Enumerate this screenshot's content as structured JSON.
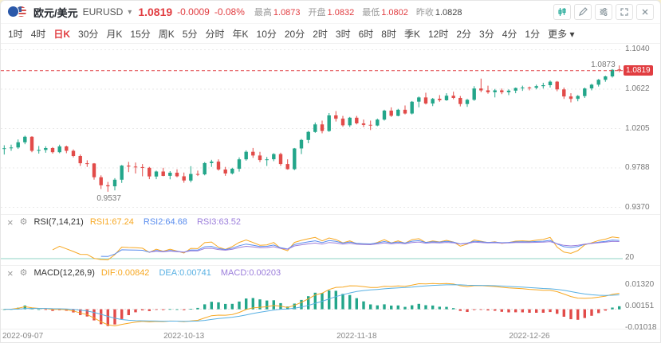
{
  "header": {
    "pair_name": "欧元/美元",
    "symbol": "EURUSD",
    "price": "1.0819",
    "change": "-0.0009",
    "change_pct": "-0.08%",
    "stats": [
      {
        "label": "最高",
        "value": "1.0873",
        "color": "#e13d41"
      },
      {
        "label": "开盘",
        "value": "1.0832",
        "color": "#e13d41"
      },
      {
        "label": "最低",
        "value": "1.0802",
        "color": "#e13d41"
      },
      {
        "label": "昨收",
        "value": "1.0828",
        "color": "#444444"
      }
    ],
    "toolbar_icons": [
      "chart-style-icon",
      "draw-icon",
      "indicator-settings-icon",
      "fullscreen-icon",
      "close-icon"
    ]
  },
  "timeframes": {
    "items": [
      "1时",
      "4时",
      "日K",
      "30分",
      "月K",
      "15分",
      "周K",
      "5分",
      "分时",
      "年K",
      "10分",
      "20分",
      "2时",
      "3时",
      "6时",
      "8时",
      "季K",
      "12时",
      "2分",
      "3分",
      "4分",
      "1分",
      "更多"
    ],
    "active": "日K",
    "more": "更多"
  },
  "rsi": {
    "close_icon": "×",
    "gear_icon": "⚙",
    "title": "RSI(7,14,21)",
    "values": [
      {
        "label": "RSI1:67.24",
        "color": "#f7a823",
        "period": 7
      },
      {
        "label": "RSI2:64.68",
        "color": "#5a8dee",
        "period": 14
      },
      {
        "label": "RSI3:63.52",
        "color": "#9b7ddb",
        "period": 21
      }
    ],
    "axis_label": "20"
  },
  "macd": {
    "close_icon": "×",
    "gear_icon": "⚙",
    "title": "MACD(12,26,9)",
    "values": [
      {
        "label": "DIF:0.00842",
        "color": "#f7a823"
      },
      {
        "label": "DEA:0.00741",
        "color": "#58b0e3"
      },
      {
        "label": "MACD:0.00203",
        "color": "#9b7ddb"
      }
    ],
    "params": {
      "fast": 12,
      "slow": 26,
      "signal": 9
    },
    "axis_labels": [
      "0.01320",
      "0.00151",
      "-0.01018"
    ]
  },
  "chart_data": {
    "type": "candlestick",
    "title": "EURUSD 日K",
    "interval": "1D",
    "last_price": 1.0819,
    "high_annotation": {
      "label": "1.0873"
    },
    "low_annotation": {
      "label": "0.9537"
    },
    "colors": {
      "up": "#23a68a",
      "down": "#e24b49",
      "grid": "#e9e9e9",
      "accent": "#e13d41"
    },
    "y_axis": {
      "ylim": [
        0.93,
        1.112
      ],
      "labels": [
        {
          "label": "1.1040",
          "value": 1.104
        },
        {
          "label": "1.0622",
          "value": 1.0622
        },
        {
          "label": "1.0205",
          "value": 1.0205
        },
        {
          "label": "0.9788",
          "value": 0.9788
        },
        {
          "label": "0.9370",
          "value": 0.937
        }
      ]
    },
    "x_labels": [
      {
        "label": "2022-09-07",
        "i": 0
      },
      {
        "label": "2022-10-13",
        "i": 26
      },
      {
        "label": "2022-11-18",
        "i": 51
      },
      {
        "label": "2022-12-26",
        "i": 76
      }
    ],
    "ohlc": [
      [
        0.999,
        1.0029,
        0.993,
        0.9998
      ],
      [
        0.9998,
        1.0035,
        0.997,
        1.0005
      ],
      [
        1.0005,
        1.009,
        0.999,
        1.006
      ],
      [
        1.006,
        1.013,
        1.004,
        1.0119
      ],
      [
        1.0119,
        1.0125,
        0.9955,
        0.997
      ],
      [
        0.997,
        1.002,
        0.994,
        0.9979
      ],
      [
        0.9979,
        1.0018,
        0.995,
        0.9999
      ],
      [
        0.9999,
        1.001,
        0.994,
        0.9955
      ],
      [
        0.9955,
        1.0035,
        0.9945,
        1.0016
      ],
      [
        1.0016,
        1.0025,
        0.9945,
        0.997
      ],
      [
        0.997,
        0.9985,
        0.99,
        0.9915
      ],
      [
        0.9915,
        0.993,
        0.981,
        0.9838
      ],
      [
        0.9838,
        0.987,
        0.98,
        0.9836
      ],
      [
        0.9836,
        0.984,
        0.9665,
        0.969
      ],
      [
        0.969,
        0.971,
        0.9565,
        0.9605
      ],
      [
        0.9605,
        0.964,
        0.9537,
        0.9594
      ],
      [
        0.9594,
        0.968,
        0.955,
        0.9664
      ],
      [
        0.9664,
        0.982,
        0.963,
        0.9813
      ],
      [
        0.9813,
        0.9853,
        0.9745,
        0.9803
      ],
      [
        0.9803,
        0.9845,
        0.973,
        0.9798
      ],
      [
        0.9798,
        0.983,
        0.97,
        0.979
      ],
      [
        0.979,
        0.98,
        0.967,
        0.9698
      ],
      [
        0.9698,
        0.976,
        0.967,
        0.9751
      ],
      [
        0.9751,
        0.979,
        0.97,
        0.9705
      ],
      [
        0.9705,
        0.9755,
        0.9668,
        0.9738
      ],
      [
        0.9738,
        0.9774,
        0.969,
        0.97
      ],
      [
        0.97,
        0.974,
        0.9632,
        0.9655
      ],
      [
        0.9655,
        0.9807,
        0.9635,
        0.9725
      ],
      [
        0.9725,
        0.976,
        0.9704,
        0.972
      ],
      [
        0.972,
        0.985,
        0.971,
        0.984
      ],
      [
        0.984,
        0.9875,
        0.98,
        0.9855
      ],
      [
        0.9855,
        0.988,
        0.976,
        0.9772
      ],
      [
        0.9772,
        0.98,
        0.9705,
        0.973
      ],
      [
        0.973,
        0.979,
        0.972,
        0.978
      ],
      [
        0.978,
        0.99,
        0.975,
        0.988
      ],
      [
        0.988,
        0.9975,
        0.9865,
        0.996
      ],
      [
        0.996,
        1.0,
        0.9895,
        0.992
      ],
      [
        0.992,
        0.996,
        0.985,
        0.9872
      ],
      [
        0.9872,
        0.9905,
        0.981,
        0.988
      ],
      [
        0.988,
        0.9945,
        0.986,
        0.9935
      ],
      [
        0.9935,
        0.995,
        0.981,
        0.983
      ],
      [
        0.983,
        0.988,
        0.977,
        0.9775
      ],
      [
        0.9775,
        1.0,
        0.9765,
        0.9995
      ],
      [
        0.9995,
        1.0095,
        0.9935,
        1.0085
      ],
      [
        1.0085,
        1.018,
        1.005,
        1.017
      ],
      [
        1.017,
        1.027,
        1.016,
        1.025
      ],
      [
        1.025,
        1.029,
        1.0155,
        1.018
      ],
      [
        1.018,
        1.037,
        1.017,
        1.0345
      ],
      [
        1.0345,
        1.039,
        1.028,
        1.031
      ],
      [
        1.031,
        1.034,
        1.0225,
        1.024
      ],
      [
        1.024,
        1.033,
        1.0222,
        1.032
      ],
      [
        1.032,
        1.034,
        1.025,
        1.026
      ],
      [
        1.026,
        1.03,
        1.022,
        1.0245
      ],
      [
        1.0245,
        1.029,
        1.019,
        1.0238
      ],
      [
        1.0238,
        1.031,
        1.023,
        1.03
      ],
      [
        1.03,
        1.0405,
        1.029,
        1.0395
      ],
      [
        1.0395,
        1.043,
        1.033,
        1.034
      ],
      [
        1.034,
        1.0415,
        1.0335,
        1.0405
      ],
      [
        1.0405,
        1.045,
        1.0355,
        1.0365
      ],
      [
        1.0365,
        1.0497,
        1.0355,
        1.049
      ],
      [
        1.049,
        1.0545,
        1.043,
        1.0535
      ],
      [
        1.0535,
        1.0585,
        1.046,
        1.047
      ],
      [
        1.047,
        1.053,
        1.0443,
        1.052
      ],
      [
        1.052,
        1.056,
        1.049,
        1.0505
      ],
      [
        1.0505,
        1.058,
        1.05,
        1.0553
      ],
      [
        1.0553,
        1.0595,
        1.0515,
        1.053
      ],
      [
        1.053,
        1.055,
        1.044,
        1.0465
      ],
      [
        1.0465,
        1.052,
        1.0435,
        1.051
      ],
      [
        1.051,
        1.0655,
        1.05,
        1.063
      ],
      [
        1.063,
        1.0735,
        1.059,
        1.061
      ],
      [
        1.061,
        1.066,
        1.0575,
        1.059
      ],
      [
        1.059,
        1.0625,
        1.0535,
        1.061
      ],
      [
        1.061,
        1.063,
        1.057,
        1.059
      ],
      [
        1.059,
        1.062,
        1.056,
        1.0607
      ],
      [
        1.0607,
        1.064,
        1.058,
        1.0635
      ],
      [
        1.0635,
        1.066,
        1.0605,
        1.064
      ],
      [
        1.064,
        1.065,
        1.061,
        1.0637
      ],
      [
        1.0637,
        1.067,
        1.062,
        1.0655
      ],
      [
        1.0655,
        1.069,
        1.063,
        1.0665
      ],
      [
        1.0665,
        1.0715,
        1.064,
        1.0702
      ],
      [
        1.0702,
        1.071,
        1.0601,
        1.062
      ],
      [
        1.062,
        1.064,
        1.052,
        1.0545
      ],
      [
        1.0545,
        1.058,
        1.0483,
        1.052
      ],
      [
        1.052,
        1.056,
        1.0495,
        1.055
      ],
      [
        1.055,
        1.064,
        1.053,
        1.063
      ],
      [
        1.063,
        1.068,
        1.061,
        1.067
      ],
      [
        1.067,
        1.073,
        1.065,
        1.0722
      ],
      [
        1.0722,
        1.0765,
        1.07,
        1.0758
      ],
      [
        1.0758,
        1.0835,
        1.0745,
        1.0828
      ],
      [
        1.0832,
        1.0873,
        1.0802,
        1.0819
      ]
    ]
  }
}
